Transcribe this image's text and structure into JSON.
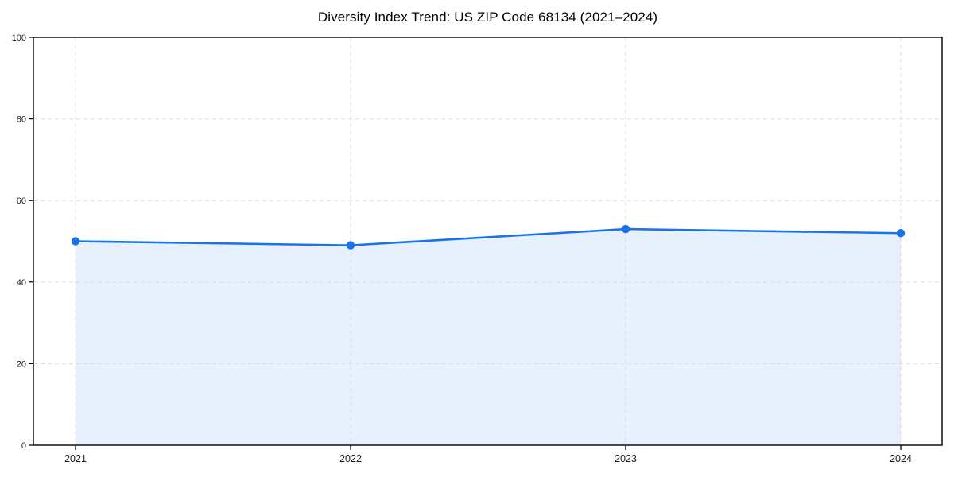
{
  "chart_data": {
    "type": "area",
    "title": "Diversity Index Trend: US ZIP Code 68134 (2021–2024)",
    "categories": [
      "2021",
      "2022",
      "2023",
      "2024"
    ],
    "series": [
      {
        "name": "Diversity Index",
        "values": [
          50,
          49,
          53,
          52
        ]
      }
    ],
    "xlabel": "",
    "ylabel": "",
    "ylim": [
      0,
      100
    ],
    "yticks": [
      0,
      20,
      40,
      60,
      80,
      100
    ],
    "grid": "dashed-both-axes",
    "legend_position": "none",
    "marker": "circle",
    "colors": {
      "line": "#1a73e8",
      "marker_fill": "#1a73e8",
      "area_fill": "#e7f0fd",
      "gridline": "#dcdcdc",
      "axis_border": "#000000",
      "tick_label": "#1a1a1a",
      "title": "#000000",
      "background": "#ffffff"
    }
  }
}
